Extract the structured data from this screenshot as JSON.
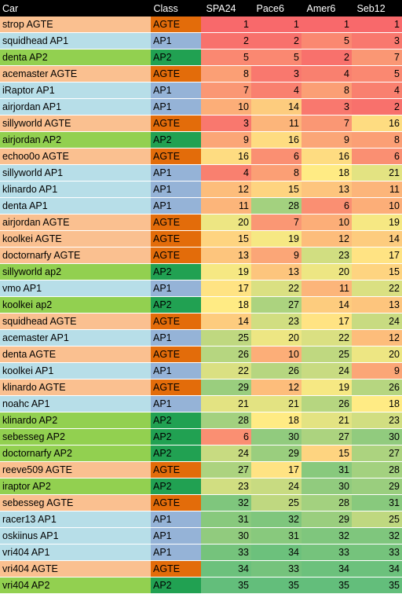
{
  "headers": [
    "Car",
    "Class",
    "SPA24",
    "Pace6",
    "Amer6",
    "Seb12"
  ],
  "class_colors": {
    "AGTE": "#E36C0A",
    "AP1": "#95B3D7",
    "AP2": "#21A152"
  },
  "car_colors": {
    "AGTE": "#FAC090",
    "AP1": "#B7DEE8",
    "AP2": "#92D050"
  },
  "scale_colors": {
    "low": "#F8696B",
    "mid": "#FFEB84",
    "high": "#63BE7B"
  },
  "rank_max": 35,
  "rows": [
    {
      "car": "strop AGTE",
      "class": "AGTE",
      "spa24": 1,
      "pace6": 1,
      "amer6": 1,
      "seb12": 1
    },
    {
      "car": "squidhead AP1",
      "class": "AP1",
      "spa24": 2,
      "pace6": 2,
      "amer6": 5,
      "seb12": 3
    },
    {
      "car": "denta AP2",
      "class": "AP2",
      "spa24": 5,
      "pace6": 5,
      "amer6": 2,
      "seb12": 7
    },
    {
      "car": "acemaster AGTE",
      "class": "AGTE",
      "spa24": 8,
      "pace6": 3,
      "amer6": 4,
      "seb12": 5
    },
    {
      "car": "iRaptor AP1",
      "class": "AP1",
      "spa24": 7,
      "pace6": 4,
      "amer6": 8,
      "seb12": 4
    },
    {
      "car": "airjordan AP1",
      "class": "AP1",
      "spa24": 10,
      "pace6": 14,
      "amer6": 3,
      "seb12": 2
    },
    {
      "car": "sillyworld AGTE",
      "class": "AGTE",
      "spa24": 3,
      "pace6": 11,
      "amer6": 7,
      "seb12": 16
    },
    {
      "car": "airjordan AP2",
      "class": "AP2",
      "spa24": 9,
      "pace6": 16,
      "amer6": 9,
      "seb12": 8
    },
    {
      "car": "echoo0o AGTE",
      "class": "AGTE",
      "spa24": 16,
      "pace6": 6,
      "amer6": 16,
      "seb12": 6
    },
    {
      "car": "sillyworld AP1",
      "class": "AP1",
      "spa24": 4,
      "pace6": 8,
      "amer6": 18,
      "seb12": 21
    },
    {
      "car": "klinardo AP1",
      "class": "AP1",
      "spa24": 12,
      "pace6": 15,
      "amer6": 13,
      "seb12": 11
    },
    {
      "car": "denta AP1",
      "class": "AP1",
      "spa24": 11,
      "pace6": 28,
      "amer6": 6,
      "seb12": 10
    },
    {
      "car": "airjordan AGTE",
      "class": "AGTE",
      "spa24": 20,
      "pace6": 7,
      "amer6": 10,
      "seb12": 19
    },
    {
      "car": "koolkei AGTE",
      "class": "AGTE",
      "spa24": 15,
      "pace6": 19,
      "amer6": 12,
      "seb12": 14
    },
    {
      "car": "doctornarfy AGTE",
      "class": "AGTE",
      "spa24": 13,
      "pace6": 9,
      "amer6": 23,
      "seb12": 17
    },
    {
      "car": "sillyworld ap2",
      "class": "AP2",
      "spa24": 19,
      "pace6": 13,
      "amer6": 20,
      "seb12": 15
    },
    {
      "car": "vmo AP1",
      "class": "AP1",
      "spa24": 17,
      "pace6": 22,
      "amer6": 11,
      "seb12": 22
    },
    {
      "car": "koolkei ap2",
      "class": "AP2",
      "spa24": 18,
      "pace6": 27,
      "amer6": 14,
      "seb12": 13
    },
    {
      "car": "squidhead AGTE",
      "class": "AGTE",
      "spa24": 14,
      "pace6": 23,
      "amer6": 17,
      "seb12": 24
    },
    {
      "car": "acemaster AP1",
      "class": "AP1",
      "spa24": 25,
      "pace6": 20,
      "amer6": 22,
      "seb12": 12
    },
    {
      "car": "denta AGTE",
      "class": "AGTE",
      "spa24": 26,
      "pace6": 10,
      "amer6": 25,
      "seb12": 20
    },
    {
      "car": "koolkei AP1",
      "class": "AP1",
      "spa24": 22,
      "pace6": 26,
      "amer6": 24,
      "seb12": 9
    },
    {
      "car": "klinardo AGTE",
      "class": "AGTE",
      "spa24": 29,
      "pace6": 12,
      "amer6": 19,
      "seb12": 26
    },
    {
      "car": "noahc AP1",
      "class": "AP1",
      "spa24": 21,
      "pace6": 21,
      "amer6": 26,
      "seb12": 18
    },
    {
      "car": "klinardo AP2",
      "class": "AP2",
      "spa24": 28,
      "pace6": 18,
      "amer6": 21,
      "seb12": 23
    },
    {
      "car": "sebesseg AP2",
      "class": "AP2",
      "spa24": 6,
      "pace6": 30,
      "amer6": 27,
      "seb12": 30
    },
    {
      "car": "doctornarfy AP2",
      "class": "AP2",
      "spa24": 24,
      "pace6": 29,
      "amer6": 15,
      "seb12": 27
    },
    {
      "car": "reeve509 AGTE",
      "class": "AGTE",
      "spa24": 27,
      "pace6": 17,
      "amer6": 31,
      "seb12": 28
    },
    {
      "car": "iraptor AP2",
      "class": "AP2",
      "spa24": 23,
      "pace6": 24,
      "amer6": 30,
      "seb12": 29
    },
    {
      "car": "sebesseg AGTE",
      "class": "AGTE",
      "spa24": 32,
      "pace6": 25,
      "amer6": 28,
      "seb12": 31
    },
    {
      "car": "racer13 AP1",
      "class": "AP1",
      "spa24": 31,
      "pace6": 32,
      "amer6": 29,
      "seb12": 25
    },
    {
      "car": "oskiinus AP1",
      "class": "AP1",
      "spa24": 30,
      "pace6": 31,
      "amer6": 32,
      "seb12": 32
    },
    {
      "car": "vri404 AP1",
      "class": "AP1",
      "spa24": 33,
      "pace6": 34,
      "amer6": 33,
      "seb12": 33
    },
    {
      "car": "vri404 AGTE",
      "class": "AGTE",
      "spa24": 34,
      "pace6": 33,
      "amer6": 34,
      "seb12": 34
    },
    {
      "car": "vri404 AP2",
      "class": "AP2",
      "spa24": 35,
      "pace6": 35,
      "amer6": 35,
      "seb12": 35
    }
  ]
}
